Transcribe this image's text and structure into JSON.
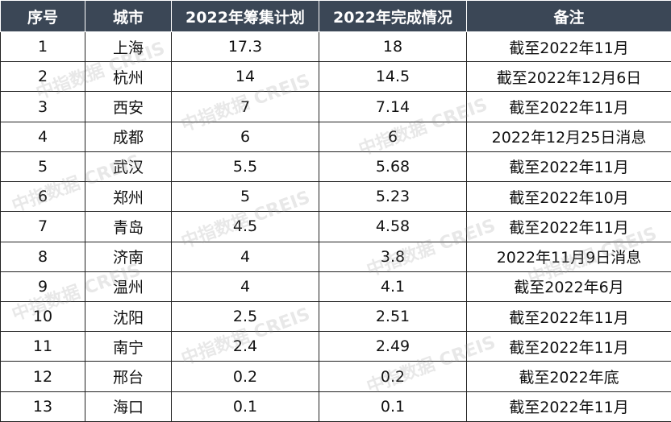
{
  "table": {
    "header": [
      "序号",
      "城市",
      "2022年筹集计划",
      "2022年完成情况",
      "备注"
    ],
    "rows": [
      [
        1,
        "上海",
        17.3,
        18,
        "截至2022年11月"
      ],
      [
        2,
        "杭州",
        14,
        14.5,
        "截至2022年12月6日"
      ],
      [
        3,
        "西安",
        7,
        7.14,
        "截至2022年11月"
      ],
      [
        4,
        "成都",
        6,
        6,
        "2022年12月25日消息"
      ],
      [
        5,
        "武汉",
        5.5,
        5.68,
        "截至2022年11月"
      ],
      [
        6,
        "郑州",
        5,
        5.23,
        "截至2022年10月"
      ],
      [
        7,
        "青岛",
        4.5,
        4.58,
        "截至2022年11月"
      ],
      [
        8,
        "济南",
        4,
        3.8,
        "2022年11月9日消息"
      ],
      [
        9,
        "温州",
        4,
        4.1,
        "截至2022年6月"
      ],
      [
        10,
        "沈阳",
        2.5,
        2.51,
        "截至2022年11月"
      ],
      [
        11,
        "南宁",
        2.4,
        2.49,
        "截至2022年11月"
      ],
      [
        12,
        "邢台",
        0.2,
        0.2,
        "截至2022年底"
      ],
      [
        13,
        "海口",
        0.1,
        0.1,
        "截至2022年11月"
      ]
    ]
  },
  "watermark": "中指数据 CREIS"
}
